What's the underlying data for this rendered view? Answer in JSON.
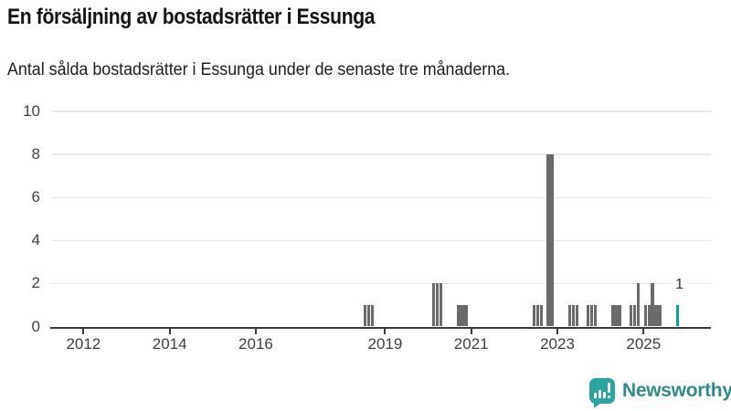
{
  "header": {
    "title": "En försäljning av bostadsrätter i Essunga",
    "subtitle": "Antal sålda bostadsrätter i Essunga under de senaste tre månaderna."
  },
  "chart_data": {
    "type": "bar",
    "title": "En försäljning av bostadsrätter i Essunga",
    "subtitle": "Antal sålda bostadsrätter i Essunga under de senaste tre månaderna.",
    "xlabel": "",
    "ylabel": "",
    "ylim": [
      0,
      10
    ],
    "yticks": [
      0,
      2,
      4,
      6,
      8,
      10
    ],
    "xticks": [
      2012,
      2014,
      2016,
      2019,
      2021,
      2023,
      2025
    ],
    "x_domain_years": [
      2011.25,
      2026.55
    ],
    "grid": "horizontal",
    "legend": "none",
    "bar_colors": {
      "default": "#6a6a6a",
      "highlight": "#00a2a4"
    },
    "annotation": {
      "text": "1",
      "month": "2025-10"
    },
    "series": [
      {
        "month": "2018-07",
        "value": 1
      },
      {
        "month": "2018-08",
        "value": 1
      },
      {
        "month": "2018-09",
        "value": 1
      },
      {
        "month": "2020-02",
        "value": 2
      },
      {
        "month": "2020-03",
        "value": 2
      },
      {
        "month": "2020-04",
        "value": 2
      },
      {
        "month": "2020-09",
        "value": 1
      },
      {
        "month": "2020-10",
        "value": 1
      },
      {
        "month": "2020-11",
        "value": 1
      },
      {
        "month": "2022-06",
        "value": 1
      },
      {
        "month": "2022-07",
        "value": 1
      },
      {
        "month": "2022-08",
        "value": 1
      },
      {
        "month": "2022-10",
        "value": 8
      },
      {
        "month": "2022-11",
        "value": 8
      },
      {
        "month": "2023-04",
        "value": 1
      },
      {
        "month": "2023-05",
        "value": 1
      },
      {
        "month": "2023-06",
        "value": 1
      },
      {
        "month": "2023-09",
        "value": 1
      },
      {
        "month": "2023-10",
        "value": 1
      },
      {
        "month": "2023-11",
        "value": 1
      },
      {
        "month": "2024-04",
        "value": 1
      },
      {
        "month": "2024-05",
        "value": 1
      },
      {
        "month": "2024-06",
        "value": 1
      },
      {
        "month": "2024-09",
        "value": 1
      },
      {
        "month": "2024-10",
        "value": 1
      },
      {
        "month": "2024-11",
        "value": 2
      },
      {
        "month": "2025-01",
        "value": 1
      },
      {
        "month": "2025-02",
        "value": 1
      },
      {
        "month": "2025-03",
        "value": 2
      },
      {
        "month": "2025-04",
        "value": 1
      },
      {
        "month": "2025-05",
        "value": 1
      },
      {
        "month": "2025-10",
        "value": 1,
        "highlight": true
      }
    ]
  },
  "logo": {
    "brand": "Newsworthy",
    "icon": "newsworthy-speech-bubble-bar-chart",
    "icon_color": "#2aa3a3",
    "text_color": "#2e8c8c"
  }
}
